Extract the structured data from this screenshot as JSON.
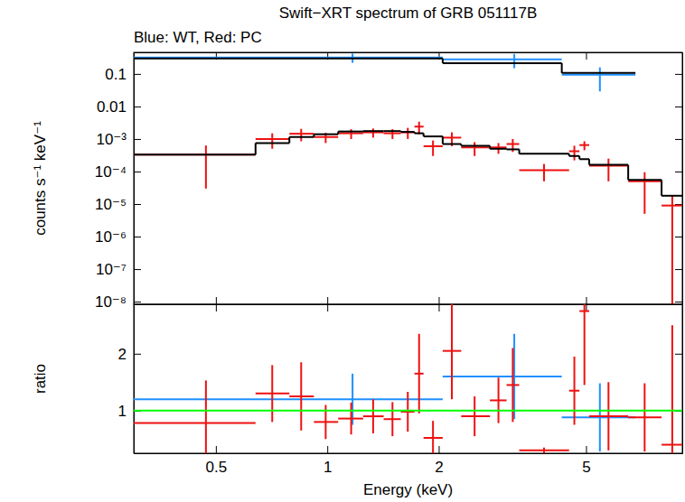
{
  "chart_data": [
    {
      "type": "scatter",
      "title": "Swift−XRT spectrum of GRB 051117B",
      "subtitle": "Blue: WT, Red: PC",
      "y_label": "counts s⁻¹ keV⁻¹",
      "log": true,
      "tick_labels": "y",
      "xlim": [
        0.3,
        9.1
      ],
      "ylim": [
        8.3e-09,
        0.46
      ],
      "xticks": [
        0.5,
        1,
        2,
        5
      ],
      "yticks": [
        0.1,
        0.01,
        {
          "value": 0.001,
          "label": "10⁻³"
        },
        {
          "value": 0.0001,
          "label": "10⁻⁴"
        },
        {
          "value": 1e-05,
          "label": "10⁻⁵"
        },
        {
          "value": 1e-06,
          "label": "10⁻⁶"
        },
        {
          "value": 1e-07,
          "label": "10⁻⁷"
        },
        {
          "value": 1e-08,
          "label": "10⁻⁸"
        }
      ],
      "series": [
        {
          "type": "scatter",
          "marker": "cross",
          "color": "#1e90ff",
          "bins": [
            0.3,
            2.05,
            4.3,
            6.8
          ],
          "x": [
            1.17,
            3.2,
            5.45
          ],
          "values": [
            0.32,
            0.28,
            0.094
          ],
          "errors": [
            0.1,
            0.13,
            0.065
          ]
        },
        {
          "type": "step",
          "color": "#000000",
          "bins": [
            0.3,
            2.05,
            4.3,
            6.8
          ],
          "values": [
            0.3,
            0.215,
            0.107
          ]
        },
        {
          "type": "scatter",
          "marker": "cross",
          "color": "#ee1111",
          "bins": [
            0.3,
            0.64,
            0.79,
            0.92,
            1.07,
            1.25,
            1.42,
            1.58,
            1.72,
            1.82,
            2.05,
            2.3,
            2.75,
            3.05,
            3.3,
            4.5,
            4.8,
            5.1,
            6.5,
            8.0,
            9.1
          ],
          "x": [
            0.47,
            0.71,
            0.85,
            0.99,
            1.16,
            1.33,
            1.5,
            1.65,
            1.77,
            1.93,
            2.17,
            2.5,
            2.9,
            3.17,
            3.85,
            4.65,
            4.95,
            5.75,
            7.2,
            8.55
          ],
          "values": [
            0.00033,
            0.001,
            0.00145,
            0.00115,
            0.0015,
            0.0016,
            0.0015,
            0.0016,
            0.0024,
            0.0006,
            0.0011,
            0.00055,
            0.00055,
            0.0007,
            0.00011,
            0.00042,
            0.00065,
            0.00015,
            5e-05,
            9e-06
          ],
          "errors": [
            0.0003,
            0.0005,
            0.0006,
            0.0004,
            0.0005,
            0.0005,
            0.0005,
            0.0006,
            0.001,
            0.0003,
            0.0005,
            0.00025,
            0.0002,
            0.0003,
            6e-05,
            0.0002,
            0.0002,
            0.0001,
            4.5e-05,
            9e-06
          ]
        },
        {
          "type": "step",
          "color": "#000000",
          "bins": [
            0.3,
            0.64,
            0.79,
            0.92,
            1.07,
            1.25,
            1.42,
            1.58,
            1.72,
            1.82,
            2.05,
            2.3,
            2.75,
            3.05,
            3.3,
            4.5,
            4.8,
            5.1,
            6.5,
            8.0,
            9.1
          ],
          "values": [
            0.00033,
            0.00075,
            0.00115,
            0.0014,
            0.0017,
            0.00175,
            0.00175,
            0.00165,
            0.0015,
            0.0012,
            0.0007,
            0.00062,
            0.0005,
            0.00048,
            0.00035,
            0.0003,
            0.00024,
            0.00016,
            5.5e-05,
            1.8e-05
          ]
        }
      ]
    },
    {
      "type": "scatter",
      "x_label": "Energy (keV)",
      "y_label": "ratio",
      "log": "x",
      "xlim": [
        0.3,
        9.1
      ],
      "ylim": [
        0.25,
        2.87
      ],
      "xticks": [
        0.5,
        1,
        2,
        5
      ],
      "yticks": [
        1,
        2
      ],
      "series": [
        {
          "type": "scatter",
          "marker": "cross",
          "color": "#1e90ff",
          "bins": [
            0.3,
            2.05,
            4.3,
            6.8
          ],
          "x": [
            1.17,
            3.2,
            5.45
          ],
          "values": [
            1.2,
            1.6,
            0.88
          ],
          "errors": [
            0.45,
            0.75,
            0.6
          ]
        },
        {
          "type": "scatter",
          "marker": "cross",
          "color": "#ee1111",
          "bins": [
            0.3,
            0.64,
            0.79,
            0.92,
            1.07,
            1.25,
            1.42,
            1.58,
            1.72,
            1.82,
            2.05,
            2.3,
            2.75,
            3.05,
            3.3,
            4.5,
            4.8,
            5.1,
            6.5,
            8.0,
            9.1
          ],
          "x": [
            0.47,
            0.71,
            0.85,
            0.99,
            1.16,
            1.33,
            1.5,
            1.65,
            1.77,
            1.93,
            2.17,
            2.5,
            2.9,
            3.17,
            3.85,
            4.65,
            4.95,
            5.75,
            7.2,
            8.55
          ],
          "values": [
            0.78,
            1.3,
            1.25,
            0.8,
            0.86,
            0.9,
            0.85,
            0.98,
            1.65,
            0.52,
            2.05,
            0.9,
            1.18,
            1.45,
            0.3,
            1.35,
            2.75,
            0.9,
            0.88,
            0.4
          ],
          "errors": [
            0.75,
            0.5,
            0.6,
            0.3,
            0.28,
            0.3,
            0.3,
            0.35,
            0.7,
            0.3,
            0.85,
            0.35,
            0.4,
            0.65,
            0.05,
            0.6,
            1.3,
            0.6,
            0.6,
            2.1
          ]
        },
        {
          "type": "hline",
          "color": "#00ff00",
          "values": [
            1
          ]
        }
      ]
    }
  ]
}
